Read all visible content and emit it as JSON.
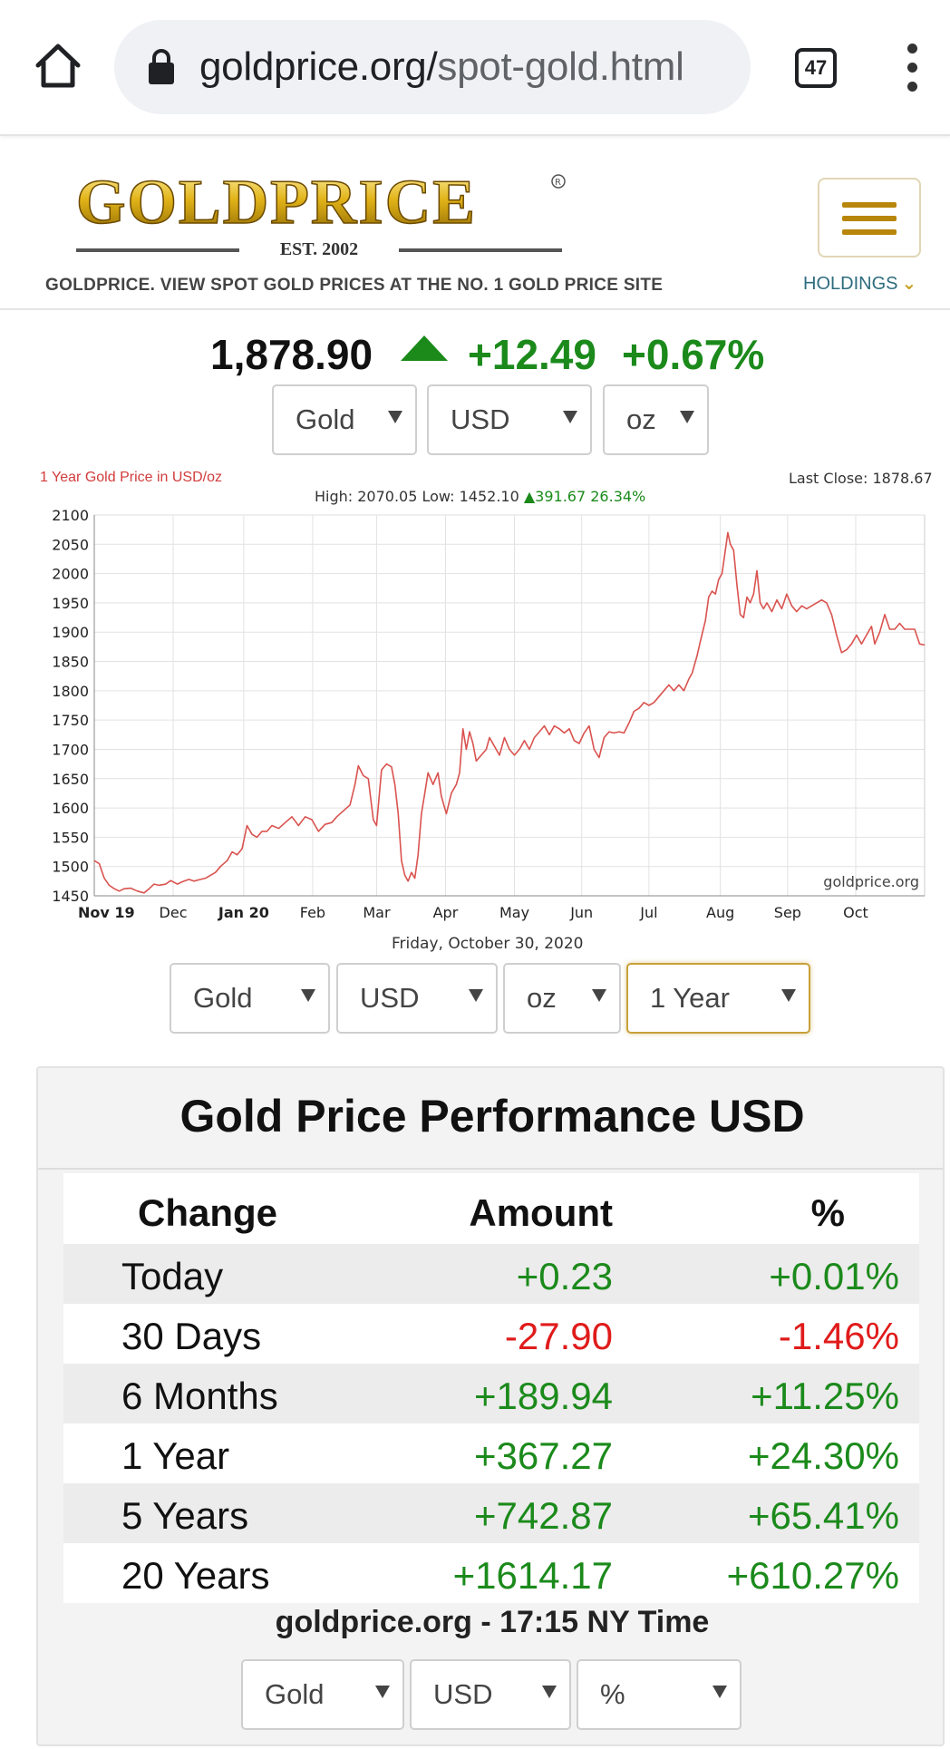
{
  "browser": {
    "url_domain": "goldprice.org/",
    "url_path": "spot-gold.html",
    "tab_count": "47"
  },
  "site": {
    "logo_text": "GOLDPRICE",
    "logo_est": "EST. 2002",
    "tagline": "GOLDPRICE. VIEW SPOT GOLD PRICES AT THE NO. 1 GOLD PRICE SITE",
    "holdings_label": "HOLDINGS",
    "brand_gold": "#c9a227"
  },
  "price": {
    "value": "1,878.90",
    "change_abs": "+12.49",
    "change_pct": "+0.67%"
  },
  "top_selects": {
    "metal": "Gold",
    "currency": "USD",
    "unit": "oz"
  },
  "chart": {
    "title": "1 Year Gold Price in USD/oz",
    "stats_prefix": "High: 2070.05 Low: 1452.10",
    "stats_gain": "▲391.67 26.34%",
    "last_close": "Last Close: 1878.67",
    "watermark": "goldprice.org",
    "date": "Friday, October 30, 2020"
  },
  "chart_data": {
    "type": "line",
    "title": "1 Year Gold Price in USD/oz",
    "xlabel": "",
    "ylabel": "",
    "ylim": [
      1450,
      2100
    ],
    "yticks": [
      2100,
      2050,
      2000,
      1950,
      1900,
      1850,
      1800,
      1750,
      1700,
      1650,
      1600,
      1550,
      1500,
      1450
    ],
    "xtick_labels": [
      {
        "label": "Nov 19",
        "x": 0,
        "bold": true
      },
      {
        "label": "Dec",
        "x": 0.095,
        "bold": false
      },
      {
        "label": "Jan 20",
        "x": 0.18,
        "bold": true
      },
      {
        "label": "Feb",
        "x": 0.263,
        "bold": false
      },
      {
        "label": "Mar",
        "x": 0.34,
        "bold": false
      },
      {
        "label": "Apr",
        "x": 0.423,
        "bold": false
      },
      {
        "label": "May",
        "x": 0.506,
        "bold": false
      },
      {
        "label": "Jun",
        "x": 0.587,
        "bold": false
      },
      {
        "label": "Jul",
        "x": 0.668,
        "bold": false
      },
      {
        "label": "Aug",
        "x": 0.754,
        "bold": false
      },
      {
        "label": "Sep",
        "x": 0.835,
        "bold": false
      },
      {
        "label": "Oct",
        "x": 0.917,
        "bold": false
      }
    ],
    "grid": true,
    "line_color": "#d9534f",
    "series": [
      {
        "name": "",
        "values": [
          [
            0,
            1510
          ],
          [
            0.006,
            1505
          ],
          [
            0.012,
            1480
          ],
          [
            0.018,
            1468
          ],
          [
            0.024,
            1462
          ],
          [
            0.03,
            1458
          ],
          [
            0.036,
            1462
          ],
          [
            0.044,
            1463
          ],
          [
            0.052,
            1458
          ],
          [
            0.06,
            1455
          ],
          [
            0.066,
            1462
          ],
          [
            0.072,
            1470
          ],
          [
            0.078,
            1468
          ],
          [
            0.086,
            1470
          ],
          [
            0.092,
            1476
          ],
          [
            0.1,
            1470
          ],
          [
            0.106,
            1474
          ],
          [
            0.114,
            1478
          ],
          [
            0.12,
            1475
          ],
          [
            0.128,
            1478
          ],
          [
            0.134,
            1480
          ],
          [
            0.14,
            1485
          ],
          [
            0.146,
            1490
          ],
          [
            0.152,
            1500
          ],
          [
            0.16,
            1510
          ],
          [
            0.166,
            1525
          ],
          [
            0.172,
            1520
          ],
          [
            0.178,
            1530
          ],
          [
            0.184,
            1570
          ],
          [
            0.19,
            1555
          ],
          [
            0.196,
            1550
          ],
          [
            0.202,
            1560
          ],
          [
            0.208,
            1560
          ],
          [
            0.214,
            1570
          ],
          [
            0.222,
            1565
          ],
          [
            0.23,
            1575
          ],
          [
            0.238,
            1585
          ],
          [
            0.246,
            1570
          ],
          [
            0.254,
            1585
          ],
          [
            0.262,
            1580
          ],
          [
            0.27,
            1560
          ],
          [
            0.278,
            1572
          ],
          [
            0.286,
            1575
          ],
          [
            0.292,
            1585
          ],
          [
            0.3,
            1595
          ],
          [
            0.308,
            1605
          ],
          [
            0.314,
            1640
          ],
          [
            0.318,
            1672
          ],
          [
            0.324,
            1655
          ],
          [
            0.33,
            1650
          ],
          [
            0.336,
            1580
          ],
          [
            0.34,
            1570
          ],
          [
            0.346,
            1665
          ],
          [
            0.352,
            1675
          ],
          [
            0.358,
            1670
          ],
          [
            0.362,
            1640
          ],
          [
            0.366,
            1590
          ],
          [
            0.37,
            1510
          ],
          [
            0.374,
            1485
          ],
          [
            0.378,
            1475
          ],
          [
            0.382,
            1490
          ],
          [
            0.386,
            1480
          ],
          [
            0.39,
            1520
          ],
          [
            0.394,
            1590
          ],
          [
            0.398,
            1625
          ],
          [
            0.402,
            1660
          ],
          [
            0.408,
            1640
          ],
          [
            0.414,
            1660
          ],
          [
            0.418,
            1620
          ],
          [
            0.424,
            1590
          ],
          [
            0.43,
            1625
          ],
          [
            0.436,
            1640
          ],
          [
            0.44,
            1660
          ],
          [
            0.444,
            1735
          ],
          [
            0.448,
            1700
          ],
          [
            0.452,
            1730
          ],
          [
            0.456,
            1710
          ],
          [
            0.46,
            1680
          ],
          [
            0.466,
            1690
          ],
          [
            0.472,
            1700
          ],
          [
            0.476,
            1720
          ],
          [
            0.482,
            1705
          ],
          [
            0.488,
            1690
          ],
          [
            0.494,
            1720
          ],
          [
            0.5,
            1700
          ],
          [
            0.506,
            1690
          ],
          [
            0.512,
            1700
          ],
          [
            0.518,
            1715
          ],
          [
            0.524,
            1700
          ],
          [
            0.53,
            1720
          ],
          [
            0.536,
            1730
          ],
          [
            0.542,
            1740
          ],
          [
            0.548,
            1725
          ],
          [
            0.554,
            1740
          ],
          [
            0.56,
            1735
          ],
          [
            0.566,
            1728
          ],
          [
            0.572,
            1735
          ],
          [
            0.578,
            1715
          ],
          [
            0.584,
            1710
          ],
          [
            0.59,
            1728
          ],
          [
            0.596,
            1740
          ],
          [
            0.602,
            1700
          ],
          [
            0.608,
            1686
          ],
          [
            0.614,
            1720
          ],
          [
            0.62,
            1730
          ],
          [
            0.626,
            1728
          ],
          [
            0.632,
            1730
          ],
          [
            0.638,
            1728
          ],
          [
            0.644,
            1745
          ],
          [
            0.65,
            1765
          ],
          [
            0.656,
            1770
          ],
          [
            0.662,
            1780
          ],
          [
            0.668,
            1775
          ],
          [
            0.674,
            1780
          ],
          [
            0.68,
            1790
          ],
          [
            0.686,
            1800
          ],
          [
            0.692,
            1810
          ],
          [
            0.698,
            1800
          ],
          [
            0.704,
            1810
          ],
          [
            0.71,
            1800
          ],
          [
            0.716,
            1820
          ],
          [
            0.72,
            1830
          ],
          [
            0.726,
            1860
          ],
          [
            0.73,
            1885
          ],
          [
            0.736,
            1920
          ],
          [
            0.74,
            1960
          ],
          [
            0.744,
            1970
          ],
          [
            0.748,
            1965
          ],
          [
            0.752,
            1990
          ],
          [
            0.756,
            2000
          ],
          [
            0.76,
            2040
          ],
          [
            0.763,
            2070
          ],
          [
            0.766,
            2050
          ],
          [
            0.77,
            2040
          ],
          [
            0.774,
            1980
          ],
          [
            0.778,
            1930
          ],
          [
            0.782,
            1925
          ],
          [
            0.786,
            1960
          ],
          [
            0.79,
            1950
          ],
          [
            0.794,
            1965
          ],
          [
            0.798,
            2005
          ],
          [
            0.802,
            1950
          ],
          [
            0.806,
            1940
          ],
          [
            0.81,
            1950
          ],
          [
            0.816,
            1935
          ],
          [
            0.822,
            1955
          ],
          [
            0.828,
            1940
          ],
          [
            0.834,
            1965
          ],
          [
            0.84,
            1945
          ],
          [
            0.846,
            1935
          ],
          [
            0.852,
            1945
          ],
          [
            0.858,
            1940
          ],
          [
            0.864,
            1945
          ],
          [
            0.87,
            1950
          ],
          [
            0.876,
            1955
          ],
          [
            0.882,
            1950
          ],
          [
            0.888,
            1930
          ],
          [
            0.894,
            1895
          ],
          [
            0.9,
            1865
          ],
          [
            0.906,
            1870
          ],
          [
            0.912,
            1880
          ],
          [
            0.918,
            1895
          ],
          [
            0.924,
            1880
          ],
          [
            0.93,
            1895
          ],
          [
            0.936,
            1910
          ],
          [
            0.94,
            1880
          ],
          [
            0.946,
            1900
          ],
          [
            0.952,
            1930
          ],
          [
            0.958,
            1905
          ],
          [
            0.964,
            1905
          ],
          [
            0.97,
            1915
          ],
          [
            0.976,
            1905
          ],
          [
            0.982,
            1905
          ],
          [
            0.988,
            1905
          ],
          [
            0.994,
            1880
          ],
          [
            1,
            1878
          ]
        ]
      }
    ]
  },
  "bottom_selects": {
    "metal": "Gold",
    "currency": "USD",
    "unit": "oz",
    "range": "1 Year"
  },
  "performance": {
    "title": "Gold Price Performance USD",
    "headers": [
      "Change",
      "Amount",
      "%"
    ],
    "rows": [
      {
        "period": "Today",
        "amount": "+0.23",
        "pct": "+0.01%",
        "dir": "pos"
      },
      {
        "period": "30 Days",
        "amount": "-27.90",
        "pct": "-1.46%",
        "dir": "neg"
      },
      {
        "period": "6 Months",
        "amount": "+189.94",
        "pct": "+11.25%",
        "dir": "pos"
      },
      {
        "period": "1 Year",
        "amount": "+367.27",
        "pct": "+24.30%",
        "dir": "pos"
      },
      {
        "period": "5 Years",
        "amount": "+742.87",
        "pct": "+65.41%",
        "dir": "pos"
      },
      {
        "period": "20 Years",
        "amount": "+1614.17",
        "pct": "+610.27%",
        "dir": "pos"
      }
    ],
    "footer": "goldprice.org - 17:15 NY Time",
    "selects": {
      "metal": "Gold",
      "currency": "USD",
      "unit": "%"
    }
  },
  "colors": {
    "positive": "#1b8a1b",
    "negative": "#e01b1b",
    "chart_line": "#d9534f"
  }
}
